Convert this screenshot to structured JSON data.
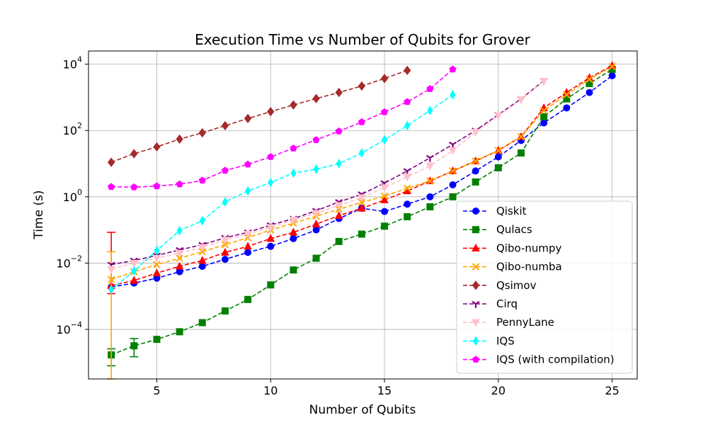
{
  "chart_data": {
    "type": "line",
    "title": "Execution Time vs Number of Qubits for Grover",
    "xlabel": "Number of Qubits",
    "ylabel": "Time (s)",
    "xlim": [
      2.0,
      26.1
    ],
    "ylim": [
      3.2e-06,
      25000
    ],
    "yscale": "log",
    "grid": true,
    "legend_position": "lower-right",
    "x_ticks": [
      {
        "value": 5,
        "label": "5"
      },
      {
        "value": 10,
        "label": "10"
      },
      {
        "value": 15,
        "label": "15"
      },
      {
        "value": 20,
        "label": "20"
      },
      {
        "value": 25,
        "label": "25"
      }
    ],
    "y_ticks": [
      {
        "value": 0.0001,
        "base": "10",
        "exp": "−4"
      },
      {
        "value": 0.01,
        "base": "10",
        "exp": "−2"
      },
      {
        "value": 1,
        "base": "10",
        "exp": "0"
      },
      {
        "value": 100,
        "base": "10",
        "exp": "2"
      },
      {
        "value": 10000,
        "base": "10",
        "exp": "4"
      }
    ],
    "series": [
      {
        "name": "Qiskit",
        "color": "#0000ff",
        "marker": "circle",
        "x": [
          3,
          4,
          5,
          6,
          7,
          8,
          9,
          10,
          11,
          12,
          13,
          14,
          15,
          16,
          17,
          18,
          19,
          20,
          21,
          22,
          23,
          24,
          25
        ],
        "y": [
          0.0019,
          0.0025,
          0.0035,
          0.0055,
          0.008,
          0.013,
          0.021,
          0.032,
          0.055,
          0.1,
          0.22,
          0.45,
          0.36,
          0.6,
          1.0,
          2.3,
          6,
          16,
          50,
          170,
          480,
          1400,
          4500
        ]
      },
      {
        "name": "Qulacs",
        "color": "#008000",
        "marker": "square",
        "x": [
          3,
          4,
          5,
          6,
          7,
          8,
          9,
          10,
          11,
          12,
          13,
          14,
          15,
          16,
          17,
          18,
          19,
          20,
          21,
          22,
          23,
          24,
          25
        ],
        "y": [
          1.7e-05,
          3.2e-05,
          5e-05,
          8.5e-05,
          0.00016,
          0.00036,
          0.0008,
          0.0022,
          0.0062,
          0.014,
          0.045,
          0.075,
          0.13,
          0.25,
          0.5,
          1.0,
          2.8,
          7.5,
          21,
          260,
          900,
          2600,
          7000
        ],
        "errors": [
          {
            "x": 3,
            "low": 8e-06,
            "high": 2.6e-05
          },
          {
            "x": 4,
            "low": 1.5e-05,
            "high": 5.3e-05
          }
        ]
      },
      {
        "name": "Qibo-numpy",
        "color": "#ff0000",
        "marker": "triangle-up",
        "x": [
          3,
          4,
          5,
          6,
          7,
          8,
          9,
          10,
          11,
          12,
          13,
          14,
          15,
          16,
          17,
          18,
          19,
          20,
          21,
          22,
          23,
          24,
          25
        ],
        "y": [
          0.0021,
          0.003,
          0.005,
          0.008,
          0.012,
          0.021,
          0.032,
          0.055,
          0.085,
          0.15,
          0.27,
          0.45,
          0.8,
          1.5,
          3,
          6,
          12,
          25,
          65,
          480,
          1400,
          3900,
          9000
        ],
        "errors": [
          {
            "x": 3,
            "low": 0.0012,
            "high": 0.085
          }
        ]
      },
      {
        "name": "Qibo-numba",
        "color": "#ffa500",
        "marker": "x",
        "x": [
          3,
          4,
          5,
          6,
          7,
          8,
          9,
          10,
          11,
          12,
          13,
          14,
          15,
          16,
          17,
          18,
          19,
          20,
          21,
          22,
          23,
          24,
          25
        ],
        "y": [
          0.0032,
          0.0055,
          0.009,
          0.014,
          0.022,
          0.036,
          0.058,
          0.1,
          0.16,
          0.26,
          0.42,
          0.68,
          1.05,
          1.8,
          3,
          6,
          12,
          25,
          65,
          400,
          1200,
          3500,
          8500
        ],
        "errors": [
          {
            "x": 3,
            "low": 3.2e-06,
            "high": 0.022
          }
        ]
      },
      {
        "name": "Qsimov",
        "color": "#a52a2a",
        "marker": "diamond",
        "x": [
          3,
          4,
          5,
          6,
          7,
          8,
          9,
          10,
          11,
          12,
          13,
          14,
          15,
          16
        ],
        "y": [
          11,
          20,
          32,
          55,
          85,
          140,
          230,
          370,
          590,
          920,
          1400,
          2200,
          3700,
          6500
        ]
      },
      {
        "name": "Cirq",
        "color": "#800080",
        "marker": "tri-down",
        "x": [
          3,
          4,
          5,
          6,
          7,
          8,
          9,
          10,
          11,
          12,
          13,
          14,
          15,
          16,
          17,
          18,
          19,
          20,
          21,
          22
        ],
        "y": [
          0.009,
          0.012,
          0.017,
          0.025,
          0.036,
          0.058,
          0.085,
          0.14,
          0.22,
          0.38,
          0.7,
          1.2,
          2.6,
          6,
          15,
          38,
          100,
          300,
          900,
          3200
        ]
      },
      {
        "name": "PennyLane",
        "color": "#ffc0cb",
        "marker": "triangle-down",
        "x": [
          3,
          4,
          5,
          6,
          7,
          8,
          9,
          10,
          11,
          12,
          13,
          14,
          15,
          16,
          17,
          18,
          19,
          20,
          21,
          22
        ],
        "y": [
          0.0065,
          0.01,
          0.014,
          0.02,
          0.03,
          0.05,
          0.075,
          0.12,
          0.2,
          0.32,
          0.55,
          0.95,
          1.9,
          4,
          8.5,
          25,
          90,
          280,
          850,
          3100
        ]
      },
      {
        "name": "IQS",
        "color": "#00ffff",
        "marker": "thin-diamond",
        "x": [
          3,
          4,
          5,
          6,
          7,
          8,
          9,
          10,
          11,
          12,
          13,
          14,
          15,
          16,
          17,
          18
        ],
        "y": [
          0.0016,
          0.0058,
          0.024,
          0.095,
          0.19,
          0.7,
          1.5,
          2.7,
          5.2,
          6.8,
          10,
          21,
          52,
          140,
          400,
          1200
        ]
      },
      {
        "name": "IQS (with compilation)",
        "color": "#ff00ff",
        "marker": "pentagon",
        "x": [
          3,
          4,
          5,
          6,
          7,
          8,
          9,
          10,
          11,
          12,
          13,
          14,
          15,
          16,
          17,
          18
        ],
        "y": [
          2,
          1.95,
          2.1,
          2.4,
          3.1,
          6.2,
          9.5,
          16,
          29,
          52,
          95,
          180,
          360,
          730,
          1800,
          7000
        ]
      }
    ]
  }
}
